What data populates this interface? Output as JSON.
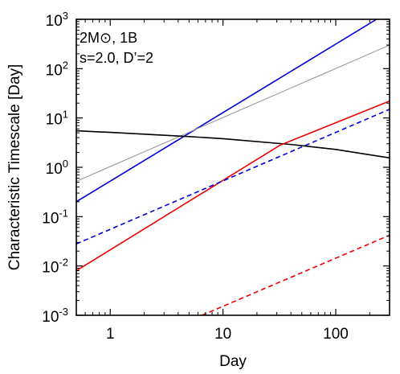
{
  "chart_data": {
    "type": "line",
    "xlabel": "Day",
    "ylabel": "Characteristic Timescale [Day]",
    "xscale": "log",
    "yscale": "log",
    "xlim": [
      0.5,
      300
    ],
    "ylim": [
      0.001,
      1000
    ],
    "grid": false,
    "x_ticks": [
      {
        "value": 1,
        "label": "1"
      },
      {
        "value": 10,
        "label": "10"
      },
      {
        "value": 100,
        "label": "100"
      }
    ],
    "y_ticks": [
      {
        "value": 0.001,
        "base": "10",
        "exp": "-3"
      },
      {
        "value": 0.01,
        "base": "10",
        "exp": "-2"
      },
      {
        "value": 0.1,
        "base": "10",
        "exp": "-1"
      },
      {
        "value": 1,
        "base": "10",
        "exp": "0"
      },
      {
        "value": 10,
        "base": "10",
        "exp": "1"
      },
      {
        "value": 100,
        "base": "10",
        "exp": "2"
      },
      {
        "value": 1000,
        "base": "10",
        "exp": "3"
      }
    ],
    "annotation_lines": [
      "2M⊙, 1B",
      "s=2.0, D’=2"
    ],
    "series": [
      {
        "color": "#0000dd",
        "dash": "solid",
        "points": [
          [
            0.5,
            0.2
          ],
          [
            230,
            1000
          ]
        ]
      },
      {
        "color": "#999999",
        "dash": "solid",
        "points": [
          [
            0.5,
            0.52
          ],
          [
            300,
            300
          ]
        ]
      },
      {
        "color": "#000000",
        "dash": "solid",
        "points": [
          [
            0.5,
            5.5
          ],
          [
            1,
            5.1
          ],
          [
            5,
            4.2
          ],
          [
            10,
            3.8
          ],
          [
            40,
            2.9
          ],
          [
            100,
            2.3
          ],
          [
            300,
            1.55
          ]
        ]
      },
      {
        "color": "#ee0000",
        "dash": "solid",
        "points": [
          [
            0.5,
            0.008
          ],
          [
            32,
            2.8
          ],
          [
            300,
            22
          ]
        ]
      },
      {
        "color": "#0000dd",
        "dash": "dashed",
        "points": [
          [
            0.5,
            0.028
          ],
          [
            300,
            15
          ]
        ]
      },
      {
        "color": "#ee0000",
        "dash": "dashed",
        "points": [
          [
            6.5,
            0.001
          ],
          [
            300,
            0.042
          ]
        ]
      }
    ]
  }
}
